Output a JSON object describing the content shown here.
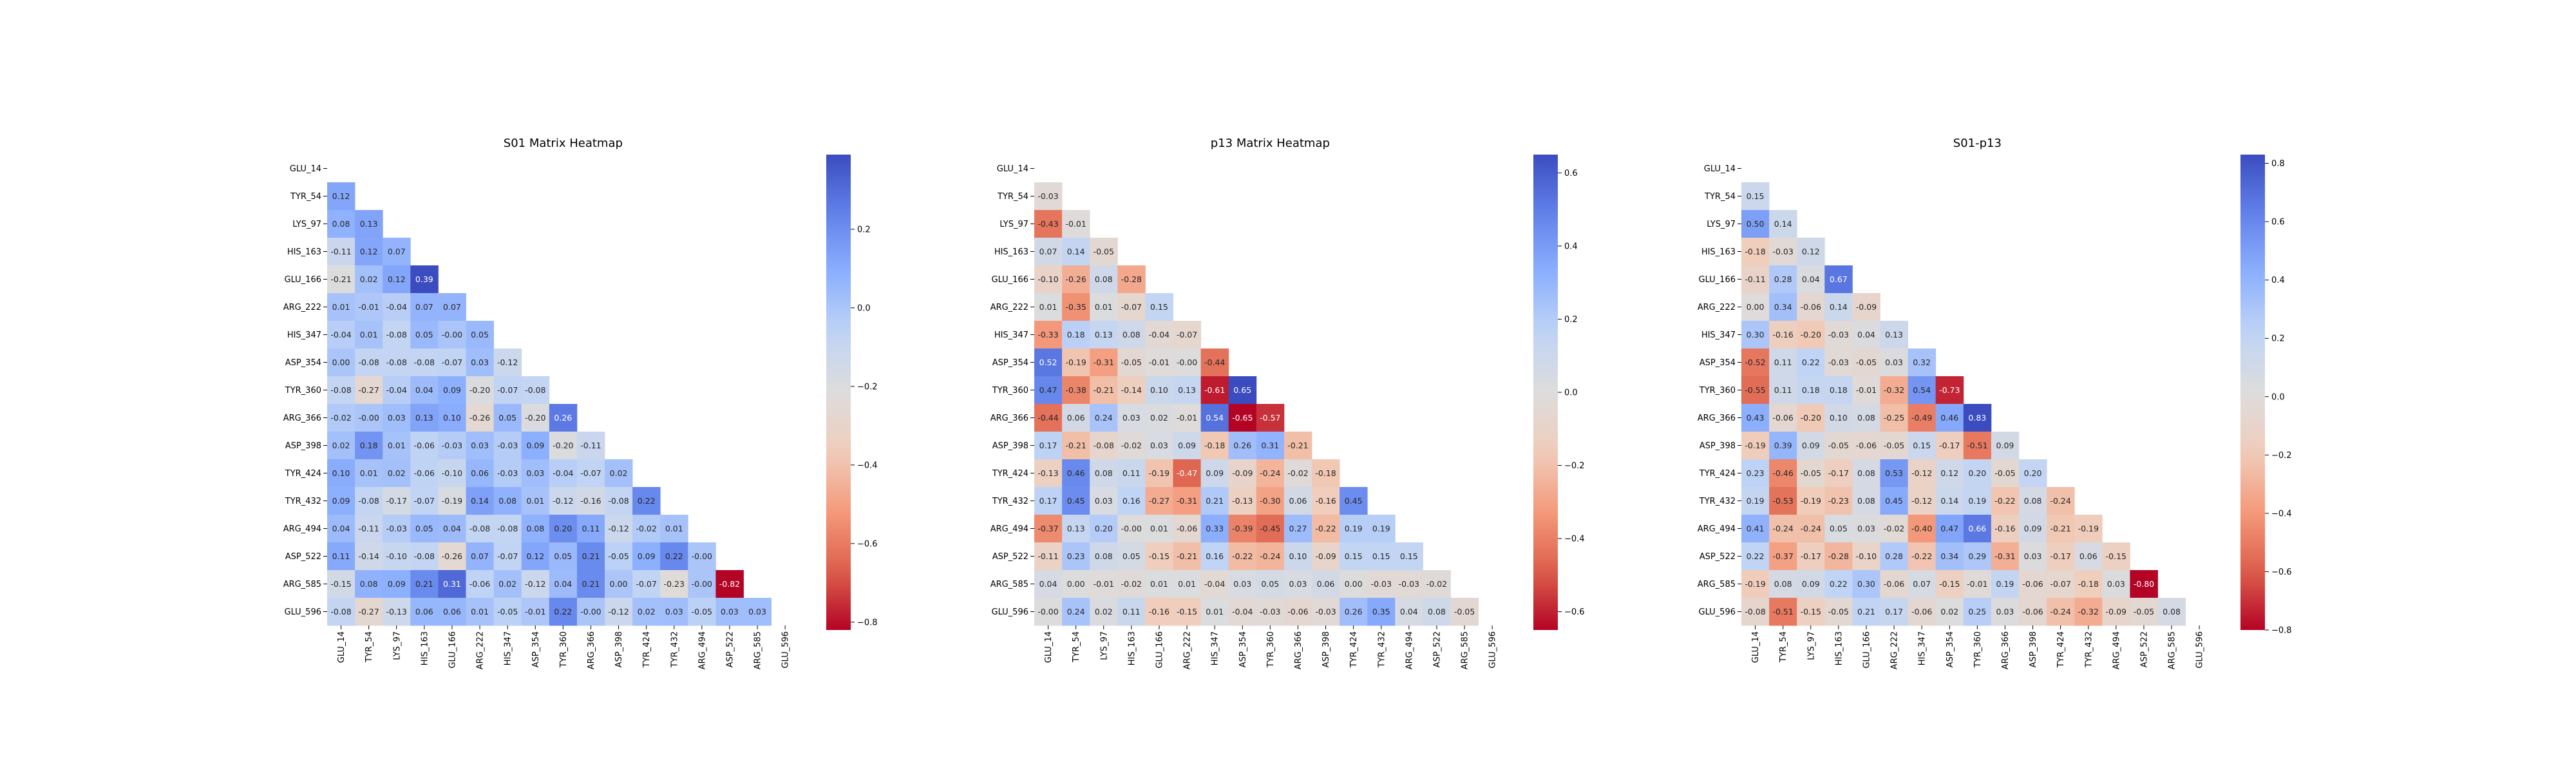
{
  "chart_data": [
    {
      "type": "heatmap",
      "title": "S01 Matrix Heatmap",
      "labels": [
        "GLU_14",
        "TYR_54",
        "LYS_97",
        "HIS_163",
        "GLU_166",
        "ARG_222",
        "HIS_347",
        "ASP_354",
        "TYR_360",
        "ARG_366",
        "ASP_398",
        "TYR_424",
        "TYR_432",
        "ARG_494",
        "ASP_522",
        "ARG_585",
        "GLU_596"
      ],
      "colorbar": {
        "min": -0.82,
        "max": 0.39,
        "ticks": [
          -0.8,
          -0.6,
          -0.4,
          -0.2,
          0.0,
          0.2
        ]
      },
      "ticklabels": [
        "−0.8",
        "−0.6",
        "−0.4",
        "−0.2",
        "0.0",
        "0.2"
      ],
      "rows": [
        [],
        [
          0.12
        ],
        [
          0.08,
          0.13
        ],
        [
          -0.11,
          0.12,
          0.07
        ],
        [
          -0.21,
          0.02,
          0.12,
          0.39
        ],
        [
          0.01,
          -0.01,
          -0.04,
          0.07,
          0.07
        ],
        [
          -0.04,
          0.01,
          -0.08,
          0.05,
          -0.0,
          0.05
        ],
        [
          0.0,
          -0.08,
          -0.08,
          -0.08,
          -0.07,
          0.03,
          -0.12
        ],
        [
          -0.08,
          -0.27,
          -0.04,
          0.04,
          0.09,
          -0.2,
          -0.07,
          -0.08
        ],
        [
          -0.02,
          -0.0,
          0.03,
          0.13,
          0.1,
          -0.26,
          0.05,
          -0.2,
          0.26
        ],
        [
          0.02,
          0.18,
          0.01,
          -0.06,
          -0.03,
          0.03,
          -0.03,
          0.09,
          -0.2,
          -0.11
        ],
        [
          0.1,
          0.01,
          0.02,
          -0.06,
          -0.1,
          0.06,
          -0.03,
          0.03,
          -0.04,
          -0.07,
          0.02
        ],
        [
          0.09,
          -0.08,
          -0.17,
          -0.07,
          -0.19,
          0.14,
          0.08,
          0.01,
          -0.12,
          -0.16,
          -0.08,
          0.22
        ],
        [
          0.04,
          -0.11,
          -0.03,
          0.05,
          0.04,
          -0.08,
          -0.08,
          0.08,
          0.2,
          0.11,
          -0.12,
          -0.02,
          0.01
        ],
        [
          0.11,
          -0.14,
          -0.1,
          -0.08,
          -0.26,
          0.07,
          -0.07,
          0.12,
          0.05,
          0.21,
          -0.05,
          0.09,
          0.22,
          -0.0
        ],
        [
          -0.15,
          0.08,
          0.09,
          0.21,
          0.31,
          -0.06,
          0.02,
          -0.12,
          0.04,
          0.21,
          0.0,
          -0.07,
          -0.23,
          -0.0,
          -0.82
        ],
        [
          -0.08,
          -0.27,
          -0.13,
          0.06,
          0.06,
          0.01,
          -0.05,
          -0.01,
          0.22,
          -0.0,
          -0.12,
          0.02,
          0.03,
          -0.05,
          0.03,
          0.03
        ]
      ]
    },
    {
      "type": "heatmap",
      "title": "p13 Matrix Heatmap",
      "labels": [
        "GLU_14",
        "TYR_54",
        "LYS_97",
        "HIS_163",
        "GLU_166",
        "ARG_222",
        "HIS_347",
        "ASP_354",
        "TYR_360",
        "ARG_366",
        "ASP_398",
        "TYR_424",
        "TYR_432",
        "ARG_494",
        "ASP_522",
        "ARG_585",
        "GLU_596"
      ],
      "colorbar": {
        "min": -0.65,
        "max": 0.65,
        "ticks": [
          -0.6,
          -0.4,
          -0.2,
          0.0,
          0.2,
          0.4,
          0.6
        ]
      },
      "ticklabels": [
        "−0.6",
        "−0.4",
        "−0.2",
        "0.0",
        "0.2",
        "0.4",
        "0.6"
      ],
      "rows": [
        [],
        [
          -0.03
        ],
        [
          -0.43,
          -0.01
        ],
        [
          0.07,
          0.14,
          -0.05
        ],
        [
          -0.1,
          -0.26,
          0.08,
          -0.28
        ],
        [
          0.01,
          -0.35,
          0.01,
          -0.07,
          0.15
        ],
        [
          -0.33,
          0.18,
          0.13,
          0.08,
          -0.04,
          -0.07
        ],
        [
          0.52,
          -0.19,
          -0.31,
          -0.05,
          -0.01,
          -0.0,
          -0.44
        ],
        [
          0.47,
          -0.38,
          -0.21,
          -0.14,
          0.1,
          0.13,
          -0.61,
          0.65
        ],
        [
          -0.44,
          0.06,
          0.24,
          0.03,
          0.02,
          -0.01,
          0.54,
          -0.65,
          -0.57
        ],
        [
          0.17,
          -0.21,
          -0.08,
          -0.02,
          0.03,
          0.09,
          -0.18,
          0.26,
          0.31,
          -0.21
        ],
        [
          -0.13,
          0.46,
          0.08,
          0.11,
          -0.19,
          -0.47,
          0.09,
          -0.09,
          -0.24,
          -0.02,
          -0.18
        ],
        [
          0.17,
          0.45,
          0.03,
          0.16,
          -0.27,
          -0.31,
          0.21,
          -0.13,
          -0.3,
          0.06,
          -0.16,
          0.45
        ],
        [
          -0.37,
          0.13,
          0.2,
          -0.0,
          0.01,
          -0.06,
          0.33,
          -0.39,
          -0.45,
          0.27,
          -0.22,
          0.19,
          0.19
        ],
        [
          -0.11,
          0.23,
          0.08,
          0.05,
          -0.15,
          -0.21,
          0.16,
          -0.22,
          -0.24,
          0.1,
          -0.09,
          0.15,
          0.15,
          0.15
        ],
        [
          0.04,
          0.0,
          -0.01,
          -0.02,
          0.01,
          0.01,
          -0.04,
          0.03,
          0.05,
          0.03,
          0.06,
          0.0,
          -0.03,
          -0.03,
          -0.02
        ],
        [
          -0.0,
          0.24,
          0.02,
          0.11,
          -0.16,
          -0.15,
          0.01,
          -0.04,
          -0.03,
          -0.06,
          -0.03,
          0.26,
          0.35,
          0.04,
          0.08,
          -0.05
        ]
      ]
    },
    {
      "type": "heatmap",
      "title": "S01-p13",
      "labels": [
        "GLU_14",
        "TYR_54",
        "LYS_97",
        "HIS_163",
        "GLU_166",
        "ARG_222",
        "HIS_347",
        "ASP_354",
        "TYR_360",
        "ARG_366",
        "ASP_398",
        "TYR_424",
        "TYR_432",
        "ARG_494",
        "ASP_522",
        "ARG_585",
        "GLU_596"
      ],
      "colorbar": {
        "min": -0.8,
        "max": 0.83,
        "ticks": [
          -0.8,
          -0.6,
          -0.4,
          -0.2,
          0.0,
          0.2,
          0.4,
          0.6,
          0.8
        ]
      },
      "ticklabels": [
        "−0.8",
        "−0.6",
        "−0.4",
        "−0.2",
        "0.0",
        "0.2",
        "0.4",
        "0.6",
        "0.8"
      ],
      "rows": [
        [],
        [
          0.15
        ],
        [
          0.5,
          0.14
        ],
        [
          -0.18,
          -0.03,
          0.12
        ],
        [
          -0.11,
          0.28,
          0.04,
          0.67
        ],
        [
          0.0,
          0.34,
          -0.06,
          0.14,
          -0.09
        ],
        [
          0.3,
          -0.16,
          -0.2,
          -0.03,
          0.04,
          0.13
        ],
        [
          -0.52,
          0.11,
          0.22,
          -0.03,
          -0.05,
          0.03,
          0.32
        ],
        [
          -0.55,
          0.11,
          0.18,
          0.18,
          -0.01,
          -0.32,
          0.54,
          -0.73
        ],
        [
          0.43,
          -0.06,
          -0.2,
          0.1,
          0.08,
          -0.25,
          -0.49,
          0.46,
          0.83
        ],
        [
          -0.19,
          0.39,
          0.09,
          -0.05,
          -0.06,
          -0.05,
          0.15,
          -0.17,
          -0.51,
          0.09
        ],
        [
          0.23,
          -0.46,
          -0.05,
          -0.17,
          0.08,
          0.53,
          -0.12,
          0.12,
          0.2,
          -0.05,
          0.2
        ],
        [
          0.19,
          -0.53,
          -0.19,
          -0.23,
          0.08,
          0.45,
          -0.12,
          0.14,
          0.19,
          -0.22,
          0.08,
          -0.24
        ],
        [
          0.41,
          -0.24,
          -0.24,
          0.05,
          0.03,
          -0.02,
          -0.4,
          0.47,
          0.66,
          -0.16,
          0.09,
          -0.21,
          -0.19
        ],
        [
          0.22,
          -0.37,
          -0.17,
          -0.28,
          -0.1,
          0.28,
          -0.22,
          0.34,
          0.29,
          -0.31,
          0.03,
          -0.17,
          0.06,
          -0.15
        ],
        [
          -0.19,
          0.08,
          0.09,
          0.22,
          0.3,
          -0.06,
          0.07,
          -0.15,
          -0.01,
          0.19,
          -0.06,
          -0.07,
          -0.18,
          0.03,
          -0.8
        ],
        [
          -0.08,
          -0.51,
          -0.15,
          -0.05,
          0.21,
          0.17,
          -0.06,
          0.02,
          0.25,
          0.03,
          -0.06,
          -0.24,
          -0.32,
          -0.09,
          -0.05,
          0.08
        ]
      ]
    }
  ]
}
